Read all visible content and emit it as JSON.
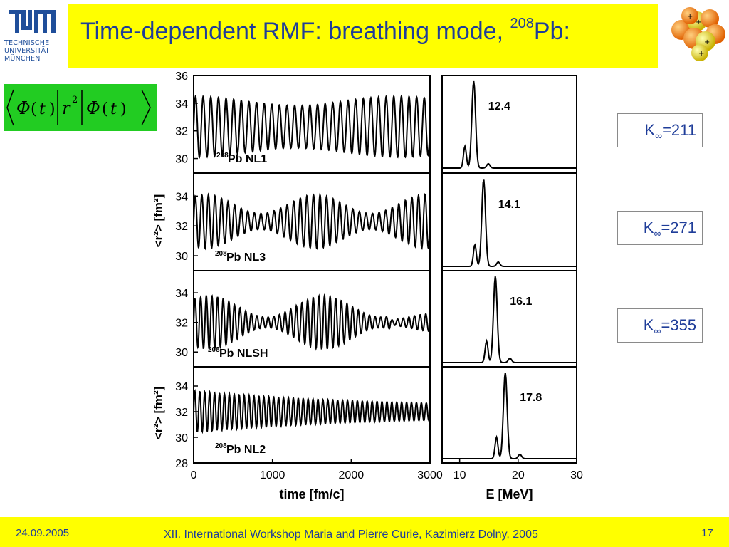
{
  "header": {
    "logo_lines": [
      "TECHNISCHE",
      "UNIVERSITÄT",
      "MÜNCHEN"
    ],
    "title_main": "Time-dependent RMF: breathing mode, ",
    "title_sup": "208",
    "title_end": "Pb:"
  },
  "formula": {
    "phi": "Φ",
    "t": "t",
    "r": "r",
    "exp": "2"
  },
  "k_labels": [
    {
      "k": "K",
      "inf": "∞",
      "val": "=211"
    },
    {
      "k": "K",
      "inf": "∞",
      "val": "=271"
    },
    {
      "k": "K",
      "inf": "∞",
      "val": "=355"
    }
  ],
  "footer": {
    "date": "24.09.2005",
    "text": "XII. International Workshop Maria and Pierre Curie, Kazimierz Dolny, 2005",
    "page": "17"
  },
  "colors": {
    "title_bar": "#ffff00",
    "text_blue": "#1f3d99",
    "formula_bg": "#22cc22"
  },
  "chart_data": [
    {
      "type": "line",
      "xlabel": "time [fm/c]",
      "ylabel": "<r²> [fm²]",
      "xlim": [
        0,
        3000
      ],
      "x_ticks": [
        "0",
        "1000",
        "2000",
        "3000"
      ],
      "panels": [
        {
          "label_sup": "208",
          "label": "Pb NL1",
          "ylim": [
            29,
            36
          ],
          "y_ticks": [
            "30",
            "32",
            "34",
            "36"
          ],
          "center": 32.3,
          "amplitude": 2.2,
          "osc_count": 31,
          "envelope": "slight dip then growth"
        },
        {
          "label_sup": "208",
          "label": "Pb NL3",
          "ylim": [
            29,
            35.5
          ],
          "y_ticks": [
            "30",
            "32",
            "34"
          ],
          "center": 32.3,
          "amplitude": 1.8,
          "osc_count": 36,
          "envelope": "beating"
        },
        {
          "label_sup": "208",
          "label": "Pb NLSH",
          "ylim": [
            29,
            35.5
          ],
          "y_ticks": [
            "30",
            "32",
            "34"
          ],
          "center": 32.0,
          "amplitude": 1.8,
          "osc_count": 42,
          "envelope": "beating, damped at end"
        },
        {
          "label_sup": "208",
          "label": "Pb NL2",
          "ylim": [
            28,
            35.5
          ],
          "y_ticks": [
            "28",
            "30",
            "32",
            "34"
          ],
          "center": 32.0,
          "amplitude": 1.4,
          "osc_count": 48,
          "envelope": "damped"
        }
      ]
    },
    {
      "type": "line",
      "xlabel": "E [MeV]",
      "xlim": [
        7,
        30
      ],
      "x_ticks": [
        "10",
        "20",
        "30"
      ],
      "panels": [
        {
          "peak_label": "12.4",
          "peak": 12.4
        },
        {
          "peak_label": "14.1",
          "peak": 14.1
        },
        {
          "peak_label": "16.1",
          "peak": 16.1
        },
        {
          "peak_label": "17.8",
          "peak": 17.8
        }
      ]
    }
  ]
}
